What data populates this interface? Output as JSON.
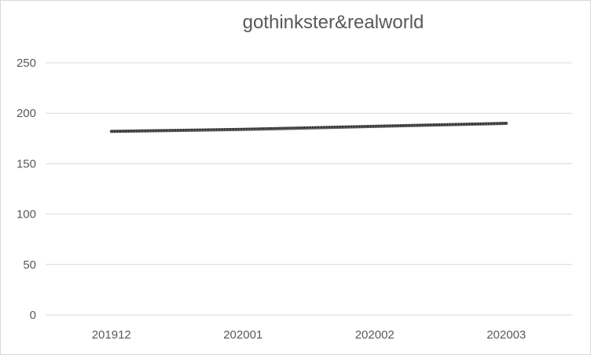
{
  "chart_data": {
    "type": "line",
    "title": "gothinkster&realworld",
    "xlabel": "",
    "ylabel": "",
    "categories": [
      "201912",
      "202001",
      "202002",
      "202003"
    ],
    "yticks": [
      "0",
      "50",
      "100",
      "150",
      "200",
      "250"
    ],
    "ylim": [
      0,
      250
    ],
    "grid": true,
    "legend": "none",
    "series": [
      {
        "values": [
          182,
          184,
          187,
          190
        ],
        "color": "#595959",
        "trend": "dotted linear trendline"
      }
    ]
  }
}
